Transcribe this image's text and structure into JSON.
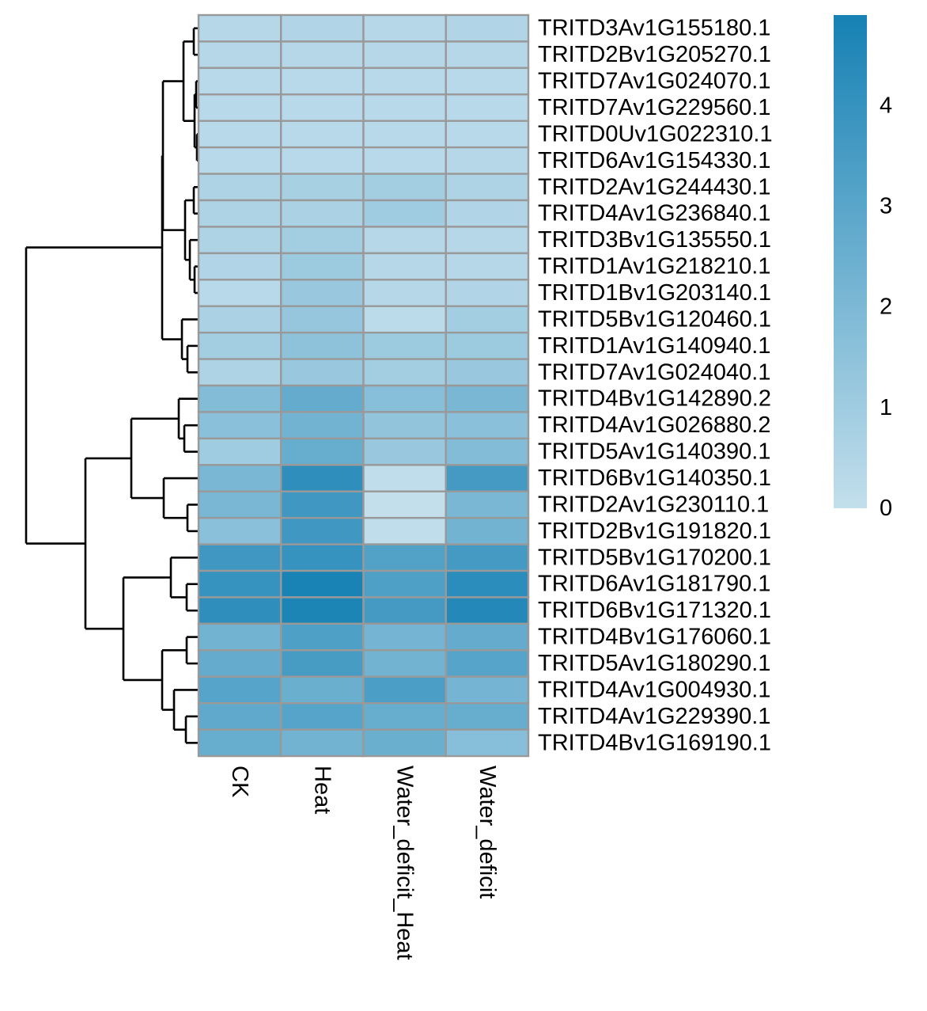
{
  "chart_data": {
    "type": "heatmap",
    "title": "",
    "xlabel": "",
    "ylabel": "",
    "columns": [
      "CK",
      "Heat",
      "Water_deficit_Heat",
      "Water_deficit"
    ],
    "rows": [
      "TRITD3Av1G155180.1",
      "TRITD2Bv1G205270.1",
      "TRITD7Av1G024070.1",
      "TRITD7Av1G229560.1",
      "TRITD0Uv1G022310.1",
      "TRITD6Av1G154330.1",
      "TRITD2Av1G244430.1",
      "TRITD4Av1G236840.1",
      "TRITD3Bv1G135550.1",
      "TRITD1Av1G218210.1",
      "TRITD1Bv1G203140.1",
      "TRITD5Bv1G120460.1",
      "TRITD1Av1G140940.1",
      "TRITD7Av1G024040.1",
      "TRITD4Bv1G142890.2",
      "TRITD4Av1G026880.2",
      "TRITD5Av1G140390.1",
      "TRITD6Bv1G140350.1",
      "TRITD2Av1G230110.1",
      "TRITD2Bv1G191820.1",
      "TRITD5Bv1G170200.1",
      "TRITD6Av1G181790.1",
      "TRITD6Bv1G171320.1",
      "TRITD4Bv1G176060.1",
      "TRITD5Av1G180290.1",
      "TRITD4Av1G004930.1",
      "TRITD4Av1G229390.1",
      "TRITD4Bv1G169190.1"
    ],
    "values": [
      [
        0.4,
        0.5,
        0.4,
        0.5
      ],
      [
        0.4,
        0.4,
        0.4,
        0.4
      ],
      [
        0.3,
        0.3,
        0.3,
        0.3
      ],
      [
        0.3,
        0.3,
        0.3,
        0.3
      ],
      [
        0.3,
        0.3,
        0.3,
        0.3
      ],
      [
        0.3,
        0.3,
        0.3,
        0.4
      ],
      [
        0.6,
        0.8,
        0.9,
        0.6
      ],
      [
        0.6,
        0.7,
        1.0,
        0.5
      ],
      [
        0.6,
        0.9,
        0.4,
        0.4
      ],
      [
        0.5,
        1.1,
        0.4,
        0.4
      ],
      [
        0.3,
        1.2,
        0.4,
        0.5
      ],
      [
        0.7,
        1.3,
        0.2,
        0.9
      ],
      [
        0.9,
        1.5,
        1.1,
        1.1
      ],
      [
        0.6,
        1.2,
        0.9,
        1.2
      ],
      [
        1.8,
        2.7,
        1.7,
        2.1
      ],
      [
        1.6,
        2.3,
        1.4,
        1.6
      ],
      [
        1.0,
        2.6,
        1.2,
        1.8
      ],
      [
        2.1,
        4.2,
        0.1,
        3.6
      ],
      [
        2.1,
        3.7,
        0.0,
        2.1
      ],
      [
        1.6,
        3.7,
        0.1,
        2.3
      ],
      [
        3.7,
        4.0,
        3.2,
        3.6
      ],
      [
        4.0,
        4.8,
        3.3,
        4.3
      ],
      [
        4.2,
        4.7,
        3.6,
        4.5
      ],
      [
        2.3,
        3.3,
        2.2,
        2.7
      ],
      [
        2.7,
        3.5,
        2.3,
        3.1
      ],
      [
        3.1,
        2.5,
        3.4,
        2.2
      ],
      [
        2.8,
        3.1,
        2.6,
        2.6
      ],
      [
        2.6,
        2.3,
        2.5,
        1.7
      ]
    ],
    "colorbar": {
      "min": 0,
      "max": 4.9,
      "ticks": [
        0,
        1,
        2,
        3,
        4
      ],
      "low_color": "#c3dfec",
      "high_color": "#1681b4"
    },
    "cell_border_color": "#999999",
    "row_dendrogram": true,
    "column_dendrogram": false,
    "legend": "right"
  }
}
